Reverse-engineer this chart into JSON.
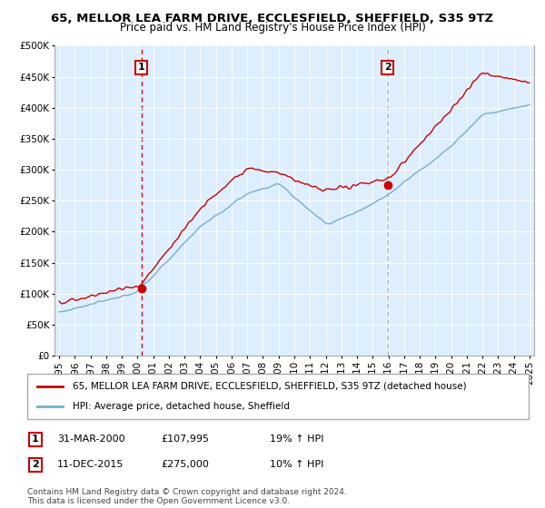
{
  "title_line1": "65, MELLOR LEA FARM DRIVE, ECCLESFIELD, SHEFFIELD, S35 9TZ",
  "title_line2": "Price paid vs. HM Land Registry's House Price Index (HPI)",
  "legend_label1": "65, MELLOR LEA FARM DRIVE, ECCLESFIELD, SHEFFIELD, S35 9TZ (detached house)",
  "legend_label2": "HPI: Average price, detached house, Sheffield",
  "annotation1_box": "1",
  "annotation1_date": "31-MAR-2000",
  "annotation1_price": "£107,995",
  "annotation1_hpi": "19% ↑ HPI",
  "annotation2_box": "2",
  "annotation2_date": "11-DEC-2015",
  "annotation2_price": "£275,000",
  "annotation2_hpi": "10% ↑ HPI",
  "footnote": "Contains HM Land Registry data © Crown copyright and database right 2024.\nThis data is licensed under the Open Government Licence v3.0.",
  "line1_color": "#cc0000",
  "line2_color": "#7aadcc",
  "vline1_color": "#cc0000",
  "vline2_color": "#aaaaaa",
  "bg_color": "#ddeeff",
  "marker1_year": 2000.25,
  "marker1_value": 107995,
  "marker2_year": 2015.95,
  "marker2_value": 275000,
  "ylim_min": 0,
  "ylim_max": 500000,
  "ytick_step": 50000,
  "year_start": 1995,
  "year_end": 2025
}
